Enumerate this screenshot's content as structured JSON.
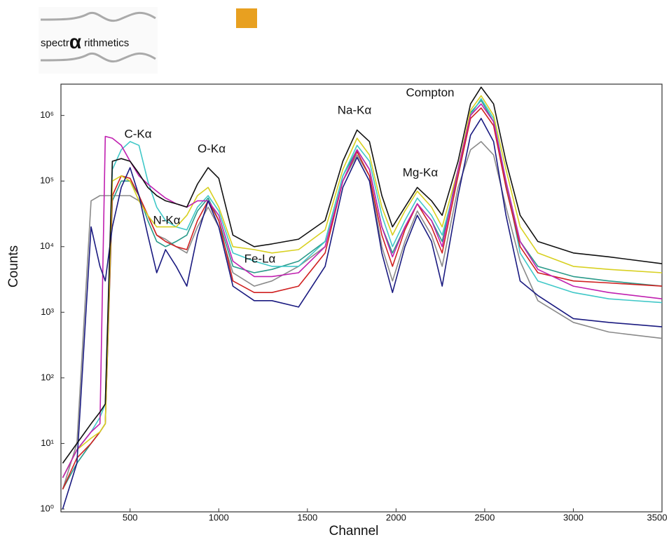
{
  "logo": {
    "prefix": "spectr",
    "alpha": "α",
    "suffix": "rithmetics"
  },
  "chart_data": {
    "type": "line",
    "log_y": true,
    "grid": false,
    "xlabel": "Channel",
    "ylabel": "Counts",
    "annotations": [
      "C-Kα",
      "N-Kα",
      "O-Kα",
      "Fe-Lα",
      "Na-Kα",
      "Mg-Kα",
      "Compton"
    ],
    "xlim": [
      110,
      3500
    ],
    "xticks": [
      500,
      1000,
      1500,
      2000,
      2500,
      3000,
      3500
    ],
    "ylim": [
      1,
      3000000
    ],
    "yticks": [
      {
        "value": 1,
        "label": "10⁰"
      },
      {
        "value": 10,
        "label": "10¹"
      },
      {
        "value": 100,
        "label": "10²"
      },
      {
        "value": 1000,
        "label": "10³"
      },
      {
        "value": 10000,
        "label": "10⁴"
      },
      {
        "value": 100000,
        "label": "10⁵"
      },
      {
        "value": 1000000,
        "label": "10⁶"
      }
    ],
    "x": [
      120,
      200,
      280,
      330,
      360,
      400,
      450,
      500,
      550,
      600,
      650,
      700,
      760,
      820,
      880,
      940,
      1000,
      1080,
      1200,
      1300,
      1450,
      1600,
      1700,
      1780,
      1850,
      1920,
      1980,
      2050,
      2120,
      2200,
      2260,
      2350,
      2420,
      2480,
      2550,
      2620,
      2700,
      2800,
      3000,
      3200,
      3500
    ],
    "series": [
      {
        "color": "#8a8a8a",
        "values": [
          2,
          10,
          50000,
          60000,
          60000,
          60000,
          60000,
          60000,
          50000,
          30000,
          15000,
          13000,
          10000,
          8000,
          20000,
          40000,
          20000,
          4000,
          2500,
          3000,
          5000,
          10000,
          100000,
          250000,
          120000,
          10000,
          3000,
          12000,
          35000,
          15000,
          5000,
          80000,
          300000,
          400000,
          250000,
          40000,
          6000,
          1500,
          700,
          500,
          400
        ]
      },
      {
        "color": "#2a9a8a",
        "values": [
          2,
          5,
          10,
          15,
          20,
          50000,
          100000,
          100000,
          60000,
          25000,
          12000,
          10000,
          12000,
          15000,
          35000,
          55000,
          25000,
          5000,
          4000,
          4500,
          6000,
          12000,
          120000,
          300000,
          150000,
          20000,
          8000,
          20000,
          45000,
          25000,
          12000,
          150000,
          1100000,
          1700000,
          800000,
          90000,
          12000,
          5000,
          3500,
          3000,
          2500
        ]
      },
      {
        "color": "#40c8c8",
        "values": [
          3,
          8,
          15,
          25,
          40,
          150000,
          300000,
          400000,
          350000,
          100000,
          40000,
          25000,
          20000,
          18000,
          40000,
          60000,
          35000,
          8000,
          6000,
          5000,
          5000,
          12000,
          120000,
          350000,
          200000,
          30000,
          10000,
          25000,
          55000,
          30000,
          15000,
          120000,
          1000000,
          1800000,
          900000,
          100000,
          8000,
          3000,
          2000,
          1600,
          1400
        ]
      },
      {
        "color": "#d02020",
        "values": [
          2,
          6,
          10,
          15,
          20,
          60000,
          120000,
          110000,
          60000,
          30000,
          15000,
          12000,
          10000,
          9000,
          25000,
          50000,
          25000,
          3000,
          2000,
          2000,
          2500,
          8000,
          100000,
          280000,
          120000,
          15000,
          5000,
          18000,
          45000,
          20000,
          8000,
          120000,
          900000,
          1300000,
          700000,
          80000,
          10000,
          4000,
          3000,
          2800,
          2500
        ]
      },
      {
        "color": "#d8d020",
        "values": [
          3,
          8,
          12,
          15,
          20,
          100000,
          120000,
          100000,
          50000,
          30000,
          20000,
          20000,
          20000,
          30000,
          60000,
          80000,
          40000,
          10000,
          9000,
          8000,
          9000,
          18000,
          150000,
          450000,
          250000,
          40000,
          15000,
          35000,
          70000,
          40000,
          20000,
          150000,
          1200000,
          2000000,
          1000000,
          150000,
          20000,
          8000,
          5000,
          4500,
          4000
        ]
      },
      {
        "color": "#c020b0",
        "values": [
          3,
          8,
          15,
          20,
          480000,
          450000,
          350000,
          200000,
          120000,
          90000,
          70000,
          55000,
          45000,
          40000,
          50000,
          50000,
          30000,
          6000,
          3500,
          3500,
          4000,
          10000,
          100000,
          300000,
          150000,
          20000,
          7000,
          20000,
          45000,
          25000,
          10000,
          150000,
          1000000,
          1500000,
          800000,
          100000,
          12000,
          4500,
          2500,
          2000,
          1600
        ]
      },
      {
        "color": "#1a1a80",
        "values": [
          1,
          5,
          20000,
          5000,
          3000,
          20000,
          80000,
          160000,
          60000,
          15000,
          4000,
          9000,
          5000,
          2500,
          15000,
          50000,
          20000,
          2500,
          1500,
          1500,
          1200,
          5000,
          80000,
          230000,
          100000,
          8000,
          2000,
          10000,
          30000,
          12000,
          2500,
          60000,
          500000,
          900000,
          400000,
          30000,
          3000,
          1800,
          800,
          700,
          600
        ]
      },
      {
        "color": "#111111",
        "values": [
          5,
          10,
          20,
          30,
          40,
          200000,
          220000,
          200000,
          130000,
          80000,
          60000,
          50000,
          45000,
          40000,
          90000,
          160000,
          110000,
          15000,
          10000,
          11000,
          13000,
          25000,
          200000,
          600000,
          400000,
          60000,
          20000,
          40000,
          80000,
          50000,
          30000,
          200000,
          1500000,
          2700000,
          1500000,
          200000,
          30000,
          12000,
          8000,
          7000,
          5500
        ]
      }
    ]
  }
}
